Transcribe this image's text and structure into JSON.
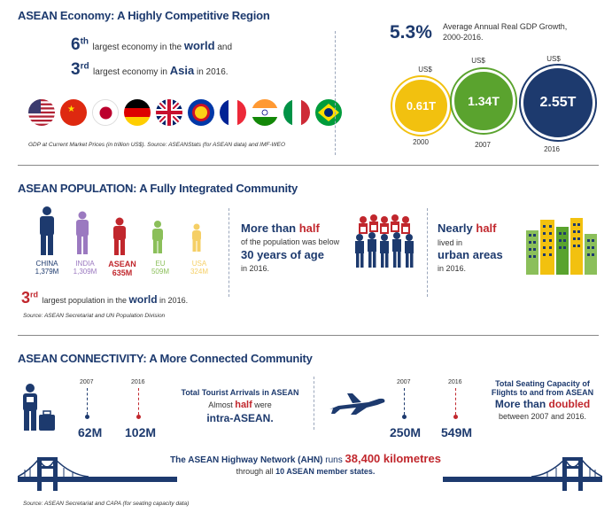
{
  "economy": {
    "title": "ASEAN Economy: A Highly Competitive Region",
    "rank1_num": "6",
    "rank1_sup": "th",
    "rank1_pre": "largest economy in the ",
    "rank1_bold": "world",
    "rank1_post": " and",
    "rank2_num": "3",
    "rank2_sup": "rd",
    "rank2_pre": "largest economy in ",
    "rank2_bold": "Asia",
    "rank2_post": " in 2016.",
    "flags": [
      "usa",
      "china",
      "japan",
      "germany",
      "uk",
      "asean",
      "france",
      "india",
      "italy",
      "brazil"
    ],
    "source": "GDP at Current Market Prices (in trillion US$). Source: ASEANStats (for ASEAN data) and IMF-WEO",
    "growth_value": "5.3%",
    "growth_label_line1": "Average Annual Real GDP Growth,",
    "growth_label_line2": "2000-2016.",
    "gdp_circles": [
      {
        "currency": "US$",
        "value": "0.61T",
        "year": "2000",
        "color": "#f2c10f"
      },
      {
        "currency": "US$",
        "value": "1.34T",
        "year": "2007",
        "color": "#5aa32e"
      },
      {
        "currency": "US$",
        "value": "2.55T",
        "year": "2016",
        "color": "#1d3a6e"
      }
    ]
  },
  "population": {
    "title": "ASEAN POPULATION: A Fully Integrated Community",
    "people": [
      {
        "name": "CHINA",
        "value": "1,379M",
        "color": "#1d3a6e"
      },
      {
        "name": "INDIA",
        "value": "1,309M",
        "color": "#9b79c0"
      },
      {
        "name": "ASEAN",
        "value": "635M",
        "color": "#c1272d"
      },
      {
        "name": "EU",
        "value": "509M",
        "color": "#8bbf5a"
      },
      {
        "name": "USA",
        "value": "324M",
        "color": "#f5cf66"
      }
    ],
    "rank_num": "3",
    "rank_sup": "rd",
    "rank_pre": "largest population in the ",
    "rank_bold": "world",
    "rank_post": " in 2016.",
    "source": "Source: ASEAN Secretariat and UN Population Division",
    "half_pre": "More than ",
    "half_red": "half",
    "half_line2": "of the population was below",
    "half_big": "30 years of age",
    "half_year": "in 2016.",
    "urban_pre": "Nearly ",
    "urban_red": "half",
    "urban_line2": "lived in",
    "urban_big": "urban areas",
    "urban_year": "in 2016."
  },
  "connectivity": {
    "title": "ASEAN CONNECTIVITY: A More Connected Community",
    "tourist_year1": "2007",
    "tourist_year2": "2016",
    "tourist_val1": "62M",
    "tourist_val2": "102M",
    "tourist_title": "Total Tourist Arrivals in ASEAN",
    "tourist_line2_pre": "Almost ",
    "tourist_line2_red": "half",
    "tourist_line2_post": " were",
    "tourist_line3": "intra-ASEAN.",
    "seat_year1": "2007",
    "seat_year2": "2016",
    "seat_val1": "250M",
    "seat_val2": "549M",
    "seat_title1": "Total Seating Capacity of",
    "seat_title2": "Flights to and from ASEAN",
    "seat_more": "More than ",
    "seat_red": "doubled",
    "seat_line4": "between 2007 and 2016.",
    "highway_pre": "The ASEAN Highway Network (AHN) ",
    "highway_runs": "runs ",
    "highway_red": "38,400 kilometres",
    "highway_line2_pre": "through all ",
    "highway_line2_bold": "10 ASEAN member states.",
    "source": "Source: ASEAN Secretariat and CAPA (for seating capacity data)"
  }
}
